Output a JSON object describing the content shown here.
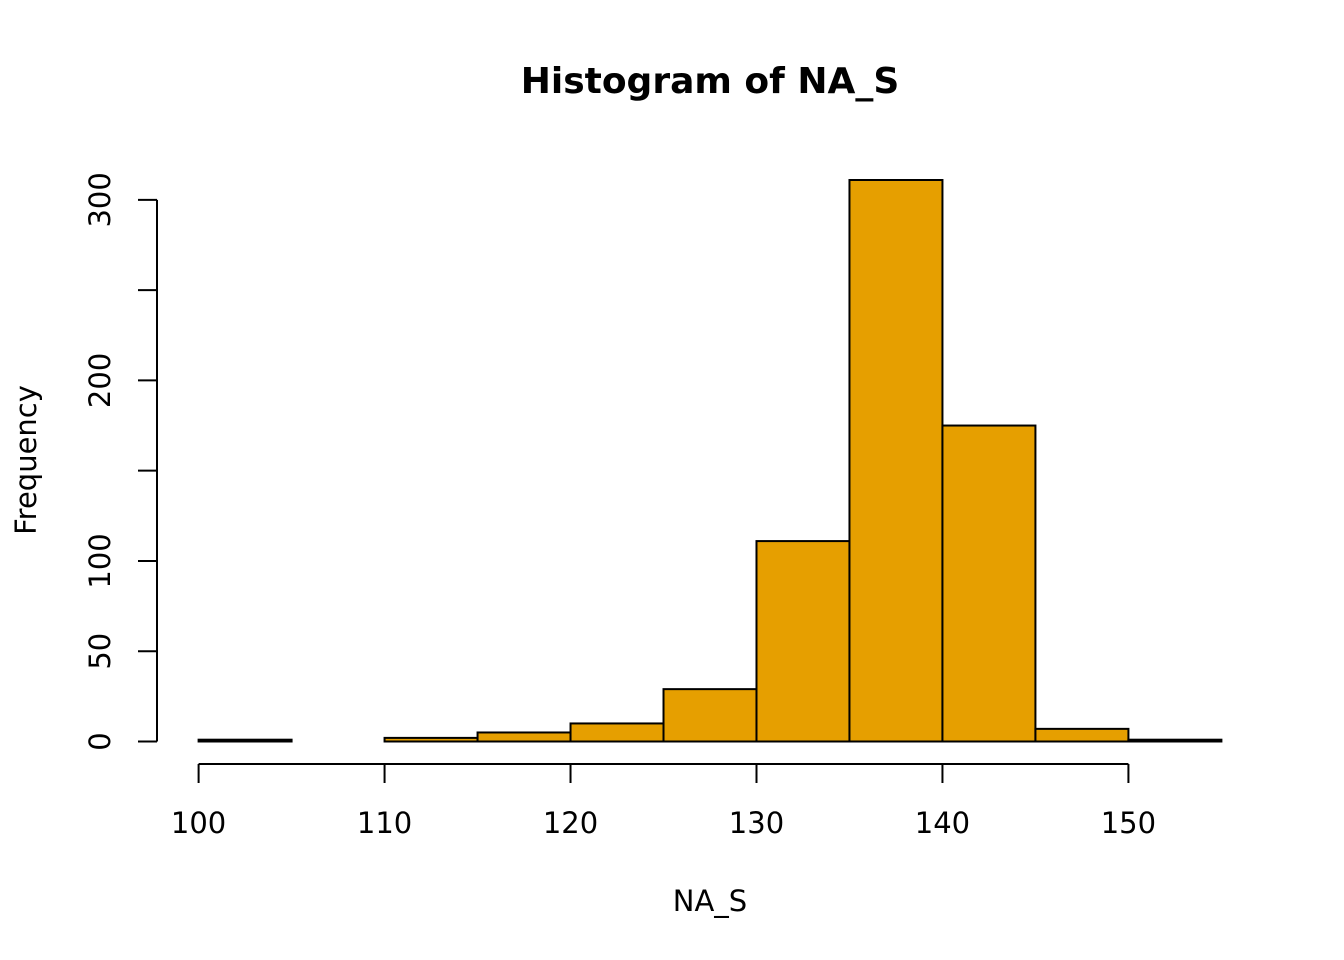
{
  "chart_data": {
    "type": "bar",
    "title": "Histogram of NA_S",
    "xlabel": "NA_S",
    "ylabel": "Frequency",
    "bar_color": "#E69F00",
    "outline_color": "#000000",
    "bins": [
      {
        "x0": 100,
        "x1": 105,
        "count": 1
      },
      {
        "x0": 105,
        "x1": 110,
        "count": 0
      },
      {
        "x0": 110,
        "x1": 115,
        "count": 2
      },
      {
        "x0": 115,
        "x1": 120,
        "count": 5
      },
      {
        "x0": 120,
        "x1": 125,
        "count": 10
      },
      {
        "x0": 125,
        "x1": 130,
        "count": 29
      },
      {
        "x0": 130,
        "x1": 135,
        "count": 111
      },
      {
        "x0": 135,
        "x1": 140,
        "count": 311
      },
      {
        "x0": 140,
        "x1": 145,
        "count": 175
      },
      {
        "x0": 145,
        "x1": 150,
        "count": 7
      },
      {
        "x0": 150,
        "x1": 155,
        "count": 1
      }
    ],
    "x_ticks": [
      100,
      110,
      120,
      130,
      140,
      150
    ],
    "x_tick_labels": [
      "100",
      "110",
      "120",
      "130",
      "140",
      "150"
    ],
    "y_ticks": [
      0,
      50,
      100,
      150,
      200,
      250,
      300
    ],
    "y_tick_labels": [
      "0",
      "50",
      "100",
      "",
      "200",
      "",
      "300"
    ],
    "xlim": [
      100,
      155
    ],
    "ylim": [
      0,
      311
    ],
    "grid": false,
    "legend": "none"
  }
}
